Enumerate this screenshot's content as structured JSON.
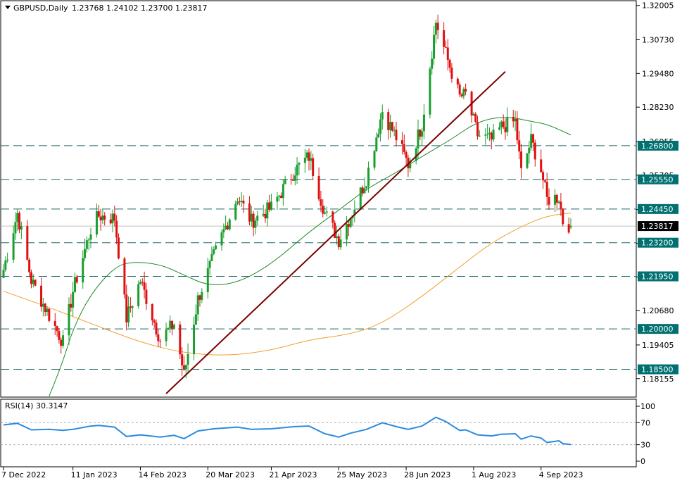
{
  "header": {
    "symbol_text": "GBPUSD,Daily",
    "ohlc_text": "1.23768 1.24102 1.23700 1.23817"
  },
  "rsi_panel": {
    "label": "RSI(14) 30.3147",
    "levels": [
      100,
      70,
      30,
      0
    ]
  },
  "colors": {
    "bull": "#1a9e2e",
    "bear": "#e01010",
    "ma_fast": "#1f8a2a",
    "ma_slow": "#f0a030",
    "trendline": "#7a0000",
    "level_line": "#1a6a6a",
    "rsi_line": "#2b8be0",
    "current_price_box": "#000000",
    "level_label_box": "#007070"
  },
  "chart_data": {
    "type": "candlestick",
    "symbol": "GBPUSD",
    "timeframe": "Daily",
    "x_tick_labels": [
      "7 Dec 2022",
      "11 Jan 2023",
      "14 Feb 2023",
      "20 Mar 2023",
      "21 Apr 2023",
      "25 May 2023",
      "28 Jun 2023",
      "1 Aug 2023",
      "4 Sep 2023"
    ],
    "y_tick_labels": [
      "1.32005",
      "1.30730",
      "1.29480",
      "1.28230",
      "1.26955",
      "1.25705",
      "1.24430",
      "1.23180",
      "1.21930",
      "1.20680",
      "1.19405",
      "1.18155"
    ],
    "ylim": [
      1.176,
      1.3205
    ],
    "horizontal_levels": [
      1.268,
      1.2555,
      1.2445,
      1.232,
      1.2195,
      1.2,
      1.185
    ],
    "current_price": 1.23817,
    "last_ohlc": {
      "open": 1.23768,
      "high": 1.24102,
      "low": 1.237,
      "close": 1.23817
    },
    "anchors": [
      {
        "date": "2022-12-07",
        "close": 1.222
      },
      {
        "date": "2022-12-14",
        "close": 1.243
      },
      {
        "date": "2022-12-21",
        "close": 1.218
      },
      {
        "date": "2022-12-30",
        "close": 1.205
      },
      {
        "date": "2023-01-06",
        "close": 1.195
      },
      {
        "date": "2023-01-11",
        "close": 1.214
      },
      {
        "date": "2023-01-20",
        "close": 1.237
      },
      {
        "date": "2023-01-24",
        "close": 1.242
      },
      {
        "date": "2023-02-01",
        "close": 1.241
      },
      {
        "date": "2023-02-07",
        "close": 1.204
      },
      {
        "date": "2023-02-14",
        "close": 1.218
      },
      {
        "date": "2023-02-24",
        "close": 1.196
      },
      {
        "date": "2023-03-03",
        "close": 1.202
      },
      {
        "date": "2023-03-08",
        "close": 1.183
      },
      {
        "date": "2023-03-15",
        "close": 1.211
      },
      {
        "date": "2023-03-23",
        "close": 1.227
      },
      {
        "date": "2023-04-04",
        "close": 1.249
      },
      {
        "date": "2023-04-11",
        "close": 1.24
      },
      {
        "date": "2023-04-21",
        "close": 1.245
      },
      {
        "date": "2023-05-03",
        "close": 1.259
      },
      {
        "date": "2023-05-10",
        "close": 1.264
      },
      {
        "date": "2023-05-18",
        "close": 1.243
      },
      {
        "date": "2023-05-25",
        "close": 1.233
      },
      {
        "date": "2023-05-31",
        "close": 1.242
      },
      {
        "date": "2023-06-08",
        "close": 1.256
      },
      {
        "date": "2023-06-16",
        "close": 1.281
      },
      {
        "date": "2023-06-23",
        "close": 1.271
      },
      {
        "date": "2023-06-29",
        "close": 1.261
      },
      {
        "date": "2023-07-06",
        "close": 1.276
      },
      {
        "date": "2023-07-13",
        "close": 1.314
      },
      {
        "date": "2023-07-18",
        "close": 1.302
      },
      {
        "date": "2023-07-25",
        "close": 1.286
      },
      {
        "date": "2023-07-28",
        "close": 1.287
      },
      {
        "date": "2023-08-03",
        "close": 1.272
      },
      {
        "date": "2023-08-10",
        "close": 1.27
      },
      {
        "date": "2023-08-15",
        "close": 1.275
      },
      {
        "date": "2023-08-22",
        "close": 1.277
      },
      {
        "date": "2023-08-25",
        "close": 1.258
      },
      {
        "date": "2023-08-30",
        "close": 1.27
      },
      {
        "date": "2023-09-04",
        "close": 1.259
      },
      {
        "date": "2023-09-07",
        "close": 1.248
      },
      {
        "date": "2023-09-13",
        "close": 1.249
      },
      {
        "date": "2023-09-15",
        "close": 1.24
      },
      {
        "date": "2023-09-19",
        "close": 1.23817
      }
    ],
    "moving_averages": [
      {
        "color_key": "ma_fast",
        "points": [
          {
            "date": "2022-12-30",
            "value": 1.175
          },
          {
            "date": "2023-01-06",
            "value": 1.188
          },
          {
            "date": "2023-01-11",
            "value": 1.2
          },
          {
            "date": "2023-01-20",
            "value": 1.213
          },
          {
            "date": "2023-02-01",
            "value": 1.223
          },
          {
            "date": "2023-02-10",
            "value": 1.225
          },
          {
            "date": "2023-02-24",
            "value": 1.224
          },
          {
            "date": "2023-03-08",
            "value": 1.22
          },
          {
            "date": "2023-03-20",
            "value": 1.216
          },
          {
            "date": "2023-04-04",
            "value": 1.217
          },
          {
            "date": "2023-04-21",
            "value": 1.224
          },
          {
            "date": "2023-05-10",
            "value": 1.236
          },
          {
            "date": "2023-05-25",
            "value": 1.244
          },
          {
            "date": "2023-06-08",
            "value": 1.252
          },
          {
            "date": "2023-06-23",
            "value": 1.258
          },
          {
            "date": "2023-07-06",
            "value": 1.264
          },
          {
            "date": "2023-07-20",
            "value": 1.27
          },
          {
            "date": "2023-08-03",
            "value": 1.277
          },
          {
            "date": "2023-08-17",
            "value": 1.279
          },
          {
            "date": "2023-08-30",
            "value": 1.277
          },
          {
            "date": "2023-09-07",
            "value": 1.276
          },
          {
            "date": "2023-09-19",
            "value": 1.272
          }
        ]
      },
      {
        "color_key": "ma_slow",
        "points": [
          {
            "date": "2022-12-07",
            "value": 1.214
          },
          {
            "date": "2022-12-30",
            "value": 1.208
          },
          {
            "date": "2023-01-20",
            "value": 1.202
          },
          {
            "date": "2023-02-14",
            "value": 1.195
          },
          {
            "date": "2023-03-08",
            "value": 1.191
          },
          {
            "date": "2023-03-30",
            "value": 1.19
          },
          {
            "date": "2023-04-21",
            "value": 1.192
          },
          {
            "date": "2023-05-10",
            "value": 1.196
          },
          {
            "date": "2023-05-31",
            "value": 1.198
          },
          {
            "date": "2023-06-16",
            "value": 1.202
          },
          {
            "date": "2023-07-06",
            "value": 1.212
          },
          {
            "date": "2023-07-25",
            "value": 1.223
          },
          {
            "date": "2023-08-10",
            "value": 1.232
          },
          {
            "date": "2023-08-25",
            "value": 1.238
          },
          {
            "date": "2023-09-07",
            "value": 1.242
          },
          {
            "date": "2023-09-19",
            "value": 1.243
          }
        ]
      }
    ],
    "trendline": {
      "start": {
        "date": "2023-02-27",
        "value": 1.176
      },
      "end": {
        "date": "2023-08-17",
        "value": 1.2955
      }
    },
    "rsi": {
      "period": 14,
      "last_value": 30.3147,
      "ylim": [
        0,
        100
      ],
      "levels": [
        70,
        30
      ],
      "points": [
        {
          "date": "2022-12-07",
          "value": 66
        },
        {
          "date": "2022-12-14",
          "value": 69
        },
        {
          "date": "2022-12-21",
          "value": 57
        },
        {
          "date": "2022-12-30",
          "value": 58
        },
        {
          "date": "2023-01-06",
          "value": 56
        },
        {
          "date": "2023-01-11",
          "value": 58
        },
        {
          "date": "2023-01-20",
          "value": 64
        },
        {
          "date": "2023-01-24",
          "value": 65
        },
        {
          "date": "2023-02-01",
          "value": 62
        },
        {
          "date": "2023-02-07",
          "value": 45
        },
        {
          "date": "2023-02-14",
          "value": 48
        },
        {
          "date": "2023-02-24",
          "value": 44
        },
        {
          "date": "2023-03-03",
          "value": 47
        },
        {
          "date": "2023-03-08",
          "value": 41
        },
        {
          "date": "2023-03-15",
          "value": 55
        },
        {
          "date": "2023-03-23",
          "value": 59
        },
        {
          "date": "2023-04-04",
          "value": 62
        },
        {
          "date": "2023-04-11",
          "value": 58
        },
        {
          "date": "2023-04-21",
          "value": 59
        },
        {
          "date": "2023-05-03",
          "value": 63
        },
        {
          "date": "2023-05-10",
          "value": 64
        },
        {
          "date": "2023-05-18",
          "value": 50
        },
        {
          "date": "2023-05-25",
          "value": 44
        },
        {
          "date": "2023-05-31",
          "value": 51
        },
        {
          "date": "2023-06-08",
          "value": 58
        },
        {
          "date": "2023-06-16",
          "value": 70
        },
        {
          "date": "2023-06-23",
          "value": 63
        },
        {
          "date": "2023-06-29",
          "value": 58
        },
        {
          "date": "2023-07-06",
          "value": 64
        },
        {
          "date": "2023-07-13",
          "value": 80
        },
        {
          "date": "2023-07-18",
          "value": 72
        },
        {
          "date": "2023-07-25",
          "value": 56
        },
        {
          "date": "2023-07-28",
          "value": 57
        },
        {
          "date": "2023-08-03",
          "value": 48
        },
        {
          "date": "2023-08-10",
          "value": 46
        },
        {
          "date": "2023-08-15",
          "value": 49
        },
        {
          "date": "2023-08-22",
          "value": 50
        },
        {
          "date": "2023-08-25",
          "value": 40
        },
        {
          "date": "2023-08-30",
          "value": 46
        },
        {
          "date": "2023-09-04",
          "value": 42
        },
        {
          "date": "2023-09-07",
          "value": 34
        },
        {
          "date": "2023-09-13",
          "value": 37
        },
        {
          "date": "2023-09-15",
          "value": 32
        },
        {
          "date": "2023-09-19",
          "value": 30.3
        }
      ]
    }
  }
}
